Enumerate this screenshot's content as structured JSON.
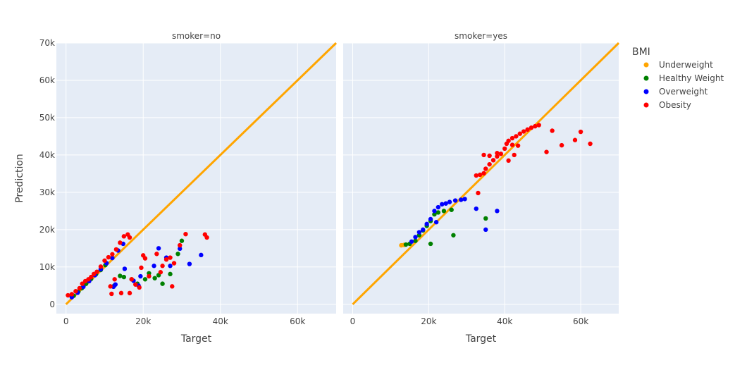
{
  "chart_data": {
    "type": "scatter",
    "ylabel": "Prediction",
    "xlabel": "Target",
    "legend": {
      "title": "BMI",
      "placement": "right",
      "entries": [
        {
          "name": "Underweight",
          "color": "#FFA500"
        },
        {
          "name": "Healthy Weight",
          "color": "#008000"
        },
        {
          "name": "Overweight",
          "color": "#0000FF"
        },
        {
          "name": "Obesity",
          "color": "#FF0000"
        }
      ]
    },
    "ylim": [
      -2500,
      70000
    ],
    "xlim": [
      -2500,
      70000
    ],
    "y_ticks": [
      "0",
      "10k",
      "20k",
      "30k",
      "40k",
      "50k",
      "60k",
      "70k"
    ],
    "y_tick_values": [
      0,
      10000,
      20000,
      30000,
      40000,
      50000,
      60000,
      70000
    ],
    "x_ticks": [
      "0",
      "20k",
      "40k",
      "60k"
    ],
    "x_tick_values": [
      0,
      20000,
      40000,
      60000
    ],
    "reference_line": {
      "color": "#FFA500",
      "from": [
        0,
        0
      ],
      "to": [
        70000,
        70000
      ]
    },
    "grid": true,
    "panels": [
      {
        "title": "smoker=no",
        "series": [
          {
            "name": "Healthy Weight",
            "points": [
              [
                2000,
                2300
              ],
              [
                3200,
                3400
              ],
              [
                4100,
                4300
              ],
              [
                5200,
                5500
              ],
              [
                6500,
                6800
              ],
              [
                7800,
                8100
              ],
              [
                9000,
                9200
              ],
              [
                10200,
                10500
              ],
              [
                12500,
                5000
              ],
              [
                14000,
                7600
              ],
              [
                15000,
                7300
              ],
              [
                17000,
                6700
              ],
              [
                18500,
                5500
              ],
              [
                20500,
                6700
              ],
              [
                21500,
                8300
              ],
              [
                23000,
                7000
              ],
              [
                24000,
                7800
              ],
              [
                25000,
                5500
              ],
              [
                27000,
                8100
              ],
              [
                29000,
                13500
              ],
              [
                30000,
                17000
              ]
            ]
          },
          {
            "name": "Overweight",
            "points": [
              [
                1500,
                1900
              ],
              [
                3000,
                3100
              ],
              [
                4500,
                4700
              ],
              [
                6000,
                6200
              ],
              [
                7500,
                7800
              ],
              [
                9000,
                9400
              ],
              [
                10500,
                11000
              ],
              [
                12000,
                12400
              ],
              [
                13500,
                14400
              ],
              [
                14800,
                16200
              ],
              [
                15200,
                9500
              ],
              [
                12300,
                4700
              ],
              [
                12800,
                5300
              ],
              [
                17500,
                6300
              ],
              [
                18800,
                5000
              ],
              [
                19300,
                7500
              ],
              [
                22800,
                10300
              ],
              [
                24000,
                15000
              ],
              [
                26000,
                12500
              ],
              [
                27000,
                10300
              ],
              [
                29500,
                14900
              ],
              [
                32000,
                10800
              ],
              [
                35000,
                13200
              ]
            ]
          },
          {
            "name": "Obesity",
            "points": [
              [
                500,
                2400
              ],
              [
                1500,
                2700
              ],
              [
                2500,
                3500
              ],
              [
                3500,
                4300
              ],
              [
                4200,
                5500
              ],
              [
                5000,
                6200
              ],
              [
                5800,
                6700
              ],
              [
                6500,
                7300
              ],
              [
                7200,
                8100
              ],
              [
                8000,
                8700
              ],
              [
                9000,
                10100
              ],
              [
                10000,
                11700
              ],
              [
                11000,
                12600
              ],
              [
                12000,
                13400
              ],
              [
                13000,
                14700
              ],
              [
                14000,
                16500
              ],
              [
                15000,
                18200
              ],
              [
                16000,
                18700
              ],
              [
                16500,
                17900
              ],
              [
                11500,
                4800
              ],
              [
                11800,
                2800
              ],
              [
                12600,
                6700
              ],
              [
                14300,
                3000
              ],
              [
                16500,
                3000
              ],
              [
                17000,
                6700
              ],
              [
                18000,
                5300
              ],
              [
                19000,
                4500
              ],
              [
                19500,
                9800
              ],
              [
                20000,
                13100
              ],
              [
                20500,
                12300
              ],
              [
                21500,
                7500
              ],
              [
                23500,
                13500
              ],
              [
                24500,
                8600
              ],
              [
                25000,
                10300
              ],
              [
                26000,
                12000
              ],
              [
                27000,
                12500
              ],
              [
                27500,
                4800
              ],
              [
                28000,
                11000
              ],
              [
                29500,
                15800
              ],
              [
                31000,
                18800
              ],
              [
                36000,
                18700
              ],
              [
                36500,
                17900
              ]
            ]
          }
        ]
      },
      {
        "title": "smoker=yes",
        "series": [
          {
            "name": "Underweight",
            "points": [
              [
                12800,
                15800
              ],
              [
                13500,
                15900
              ]
            ]
          },
          {
            "name": "Healthy Weight",
            "points": [
              [
                14000,
                16000
              ],
              [
                15000,
                16200
              ],
              [
                16500,
                17000
              ],
              [
                17500,
                18500
              ],
              [
                18500,
                19800
              ],
              [
                19500,
                21000
              ],
              [
                20500,
                22300
              ],
              [
                21500,
                24100
              ],
              [
                22500,
                24600
              ],
              [
                24000,
                25000
              ],
              [
                26000,
                25300
              ],
              [
                26500,
                18500
              ],
              [
                20500,
                16200
              ],
              [
                35000,
                23000
              ]
            ]
          },
          {
            "name": "Overweight",
            "points": [
              [
                15500,
                16800
              ],
              [
                16500,
                18000
              ],
              [
                17500,
                19300
              ],
              [
                18500,
                20000
              ],
              [
                19500,
                21500
              ],
              [
                20500,
                22800
              ],
              [
                21500,
                25000
              ],
              [
                22500,
                26000
              ],
              [
                23500,
                26800
              ],
              [
                24500,
                27000
              ],
              [
                25500,
                27400
              ],
              [
                27000,
                27800
              ],
              [
                28500,
                28000
              ],
              [
                29500,
                28200
              ],
              [
                32500,
                25600
              ],
              [
                35000,
                20000
              ],
              [
                38000,
                25000
              ],
              [
                22000,
                22000
              ]
            ]
          },
          {
            "name": "Obesity",
            "points": [
              [
                32500,
                34500
              ],
              [
                33500,
                34700
              ],
              [
                34500,
                35100
              ],
              [
                35000,
                36300
              ],
              [
                36000,
                37500
              ],
              [
                37000,
                38600
              ],
              [
                38000,
                39600
              ],
              [
                39000,
                40300
              ],
              [
                40000,
                41700
              ],
              [
                40500,
                43000
              ],
              [
                41000,
                43800
              ],
              [
                42000,
                44500
              ],
              [
                43000,
                45000
              ],
              [
                44000,
                45700
              ],
              [
                45000,
                46300
              ],
              [
                46000,
                46800
              ],
              [
                47000,
                47300
              ],
              [
                48000,
                47700
              ],
              [
                49000,
                48000
              ],
              [
                34500,
                40000
              ],
              [
                36000,
                39800
              ],
              [
                38000,
                40500
              ],
              [
                41000,
                38500
              ],
              [
                42500,
                40000
              ],
              [
                43500,
                42500
              ],
              [
                42000,
                42700
              ],
              [
                33000,
                29800
              ],
              [
                51000,
                40800
              ],
              [
                52500,
                46500
              ],
              [
                55000,
                42600
              ],
              [
                58500,
                44000
              ],
              [
                60000,
                46200
              ],
              [
                62500,
                43000
              ]
            ]
          }
        ]
      }
    ]
  }
}
